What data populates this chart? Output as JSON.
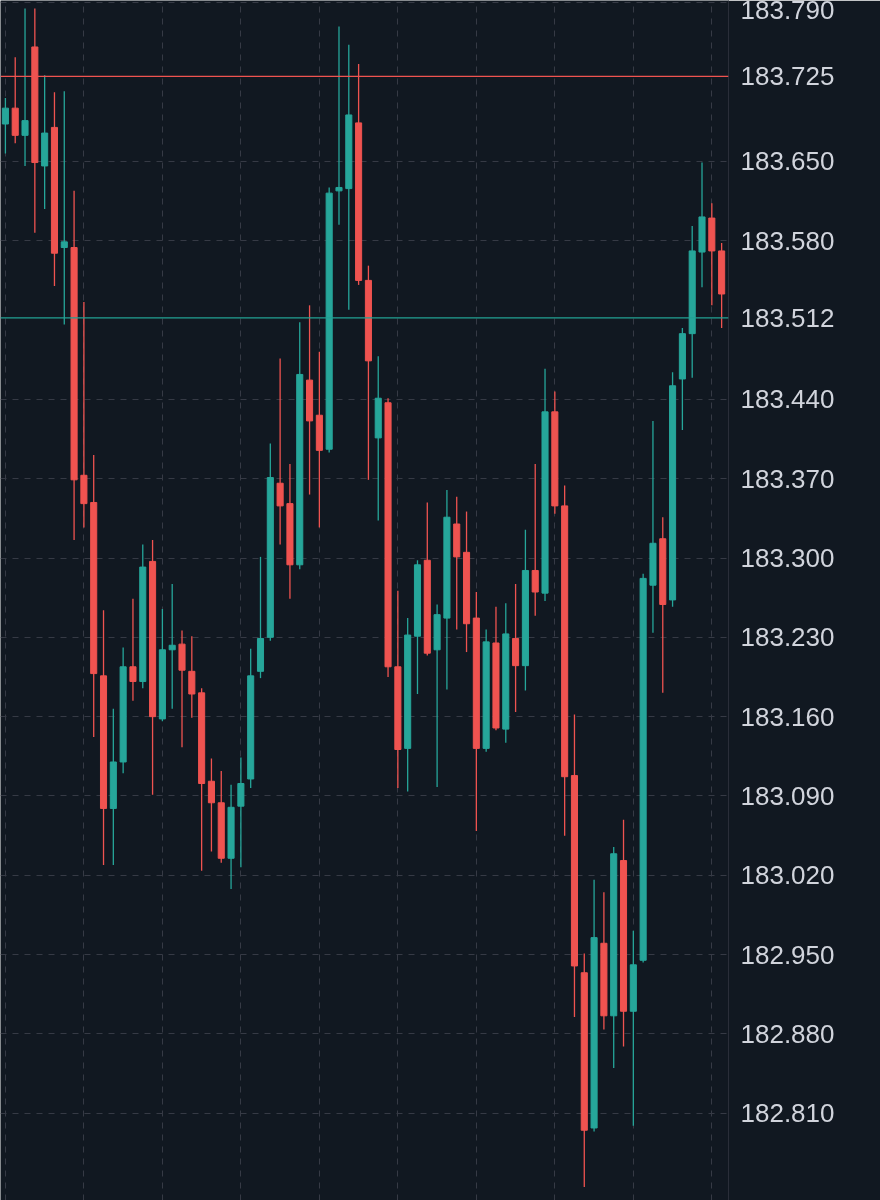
{
  "chart_data": {
    "type": "candlestick",
    "categories": [
      null,
      null,
      null,
      null,
      null,
      null,
      null,
      null,
      null,
      null,
      null,
      null,
      null,
      null,
      null,
      null,
      null,
      null,
      null,
      null,
      null,
      null,
      null,
      null,
      null,
      null,
      null,
      null,
      null,
      null,
      null,
      null,
      null,
      null,
      null,
      null,
      null,
      null,
      null,
      null,
      null,
      null,
      null,
      null,
      null,
      null,
      null,
      null,
      null,
      null,
      null,
      null,
      null,
      null,
      null,
      null,
      null,
      null,
      null,
      null,
      null,
      null,
      null,
      null,
      null,
      null,
      null,
      null,
      null,
      null,
      null,
      null,
      null,
      null
    ],
    "ohlc": [
      [
        183.683,
        183.706,
        183.657,
        183.697
      ],
      [
        183.697,
        183.742,
        183.666,
        183.673
      ],
      [
        183.673,
        183.785,
        183.646,
        183.686
      ],
      [
        183.751,
        183.785,
        183.587,
        183.649
      ],
      [
        183.646,
        183.726,
        183.608,
        183.675
      ],
      [
        183.68,
        183.711,
        183.54,
        183.569
      ],
      [
        183.574,
        183.712,
        183.506,
        183.579
      ],
      [
        183.574,
        183.624,
        183.316,
        183.369
      ],
      [
        183.373,
        183.526,
        183.327,
        183.348
      ],
      [
        183.349,
        183.391,
        183.142,
        183.198
      ],
      [
        183.196,
        183.254,
        183.029,
        183.079
      ],
      [
        183.079,
        183.167,
        183.029,
        183.12
      ],
      [
        183.12,
        183.221,
        183.11,
        183.204
      ],
      [
        183.204,
        183.264,
        183.174,
        183.191
      ],
      [
        183.191,
        183.312,
        183.185,
        183.292
      ],
      [
        183.297,
        183.316,
        183.091,
        183.16
      ],
      [
        183.158,
        183.255,
        183.156,
        183.219
      ],
      [
        183.219,
        183.277,
        183.167,
        183.223
      ],
      [
        183.224,
        183.236,
        183.133,
        183.201
      ],
      [
        183.2,
        183.231,
        183.159,
        183.18
      ],
      [
        183.181,
        183.185,
        183.024,
        183.101
      ],
      [
        183.103,
        183.123,
        183.041,
        183.084
      ],
      [
        183.084,
        183.112,
        183.031,
        183.035
      ],
      [
        183.035,
        183.1,
        183.008,
        183.08
      ],
      [
        183.081,
        183.124,
        183.027,
        183.101
      ],
      [
        183.105,
        183.22,
        183.097,
        183.196
      ],
      [
        183.2,
        183.301,
        183.194,
        183.229
      ],
      [
        183.23,
        183.401,
        183.227,
        183.371
      ],
      [
        183.366,
        183.476,
        183.312,
        183.346
      ],
      [
        183.348,
        183.383,
        183.264,
        183.294
      ],
      [
        183.294,
        183.508,
        183.29,
        183.462
      ],
      [
        183.457,
        183.523,
        183.356,
        183.421
      ],
      [
        183.426,
        183.482,
        183.327,
        183.395
      ],
      [
        183.396,
        183.627,
        183.393,
        183.622
      ],
      [
        183.624,
        183.769,
        183.594,
        183.627
      ],
      [
        183.626,
        183.753,
        183.519,
        183.691
      ],
      [
        183.684,
        183.736,
        183.541,
        183.545
      ],
      [
        183.545,
        183.558,
        183.369,
        183.474
      ],
      [
        183.406,
        183.478,
        183.333,
        183.441
      ],
      [
        183.437,
        183.441,
        183.195,
        183.204
      ],
      [
        183.204,
        183.271,
        183.097,
        183.131
      ],
      [
        183.132,
        183.247,
        183.094,
        183.232
      ],
      [
        183.231,
        183.298,
        183.18,
        183.294
      ],
      [
        183.298,
        183.349,
        183.214,
        183.216
      ],
      [
        183.219,
        183.259,
        183.098,
        183.25
      ],
      [
        183.247,
        183.36,
        183.184,
        183.336
      ],
      [
        183.33,
        183.354,
        183.237,
        183.301
      ],
      [
        183.305,
        183.341,
        183.217,
        183.242
      ],
      [
        183.247,
        183.27,
        183.059,
        183.132
      ],
      [
        183.132,
        183.237,
        183.129,
        183.226
      ],
      [
        183.225,
        183.257,
        183.148,
        183.15
      ],
      [
        183.149,
        183.26,
        183.137,
        183.233
      ],
      [
        183.229,
        183.277,
        183.164,
        183.205
      ],
      [
        183.205,
        183.325,
        183.183,
        183.289
      ],
      [
        183.289,
        183.383,
        183.249,
        183.27
      ],
      [
        183.269,
        183.467,
        183.262,
        183.429
      ],
      [
        183.429,
        183.447,
        183.339,
        183.346
      ],
      [
        183.346,
        183.364,
        183.055,
        183.107
      ],
      [
        183.108,
        183.162,
        182.895,
        182.94
      ],
      [
        182.934,
        182.951,
        182.745,
        182.795
      ],
      [
        182.797,
        183.016,
        182.794,
        182.965
      ],
      [
        182.96,
        183.005,
        182.884,
        182.896
      ],
      [
        182.896,
        183.045,
        182.85,
        183.039
      ],
      [
        183.033,
        183.069,
        182.869,
        182.9
      ],
      [
        182.9,
        182.971,
        182.799,
        182.941
      ],
      [
        182.945,
        183.286,
        182.943,
        183.282
      ],
      [
        183.276,
        183.421,
        183.234,
        183.313
      ],
      [
        183.317,
        183.336,
        183.181,
        183.259
      ],
      [
        183.263,
        183.464,
        183.257,
        183.452
      ],
      [
        183.458,
        183.503,
        183.413,
        183.498
      ],
      [
        183.498,
        183.593,
        183.459,
        183.571
      ],
      [
        183.57,
        183.649,
        183.539,
        183.601
      ],
      [
        183.6,
        183.613,
        183.523,
        183.571
      ],
      [
        183.571,
        183.578,
        183.503,
        183.533
      ]
    ],
    "ylim": [
      182.733,
      183.792
    ],
    "yticks": [
      {
        "value": 183.79,
        "label": "183.790"
      },
      {
        "value": 183.65,
        "label": "183.650"
      },
      {
        "value": 183.58,
        "label": "183.580"
      },
      {
        "value": 183.44,
        "label": "183.440"
      },
      {
        "value": 183.37,
        "label": "183.370"
      },
      {
        "value": 183.3,
        "label": "183.300"
      },
      {
        "value": 183.23,
        "label": "183.230"
      },
      {
        "value": 183.16,
        "label": "183.160"
      },
      {
        "value": 183.09,
        "label": "183.090"
      },
      {
        "value": 183.02,
        "label": "183.020"
      },
      {
        "value": 182.95,
        "label": "182.950"
      },
      {
        "value": 182.88,
        "label": "182.880"
      },
      {
        "value": 182.81,
        "label": "182.810"
      }
    ],
    "ref_lines": [
      {
        "axis": "y",
        "value": 183.725,
        "label": "183.725",
        "color": "#f05350"
      },
      {
        "axis": "y",
        "value": 183.512,
        "label": "183.512",
        "color": "#22a193"
      }
    ],
    "grid": true,
    "tick_labels": "y"
  }
}
